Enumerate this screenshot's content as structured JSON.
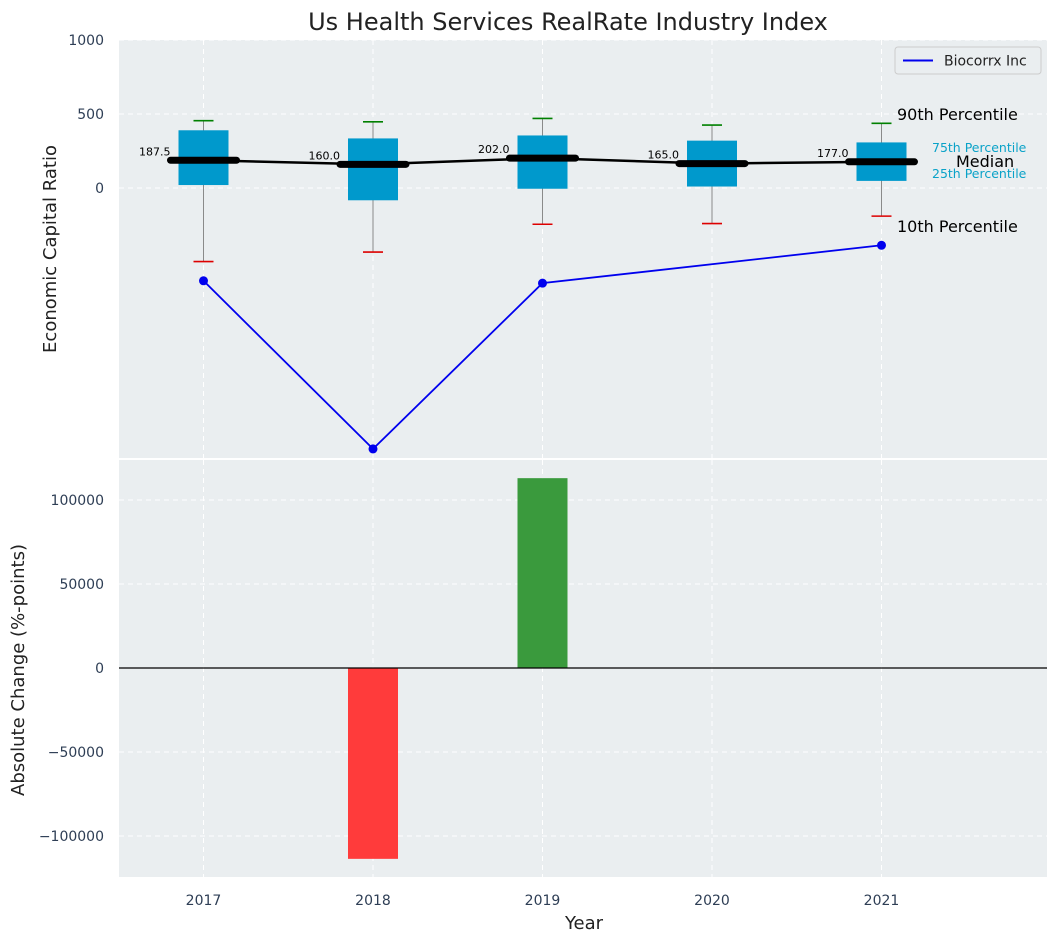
{
  "chart_data": [
    {
      "type": "box",
      "title": "Us Health Services RealRate Industry Index",
      "xlabel": "",
      "ylabel": "Economic Capital Ratio",
      "categories": [
        "2017",
        "2018",
        "2019",
        "2020",
        "2021"
      ],
      "y_ticks": [
        "1000",
        "500",
        "0"
      ],
      "y_tick_values": [
        1000,
        500,
        0
      ],
      "ylim": [
        -1800,
        1000
      ],
      "grid": true,
      "box_color": "#0099cc",
      "median_color": "#000000",
      "boxes": [
        {
          "category": "2017",
          "p10": -497,
          "p25": 20,
          "median": 187.5,
          "p75": 390,
          "p90": 455,
          "median_label": "187.5"
        },
        {
          "category": "2018",
          "p10": -433,
          "p25": -83,
          "median": 160.0,
          "p75": 335,
          "p90": 447,
          "median_label": "160.0"
        },
        {
          "category": "2019",
          "p10": -245,
          "p25": -5,
          "median": 202.0,
          "p75": 355,
          "p90": 470,
          "median_label": "202.0"
        },
        {
          "category": "2020",
          "p10": -240,
          "p25": 10,
          "median": 165.0,
          "p75": 320,
          "p90": 425,
          "median_label": "165.0"
        },
        {
          "category": "2021",
          "p10": -190,
          "p25": 48,
          "median": 177.0,
          "p75": 308,
          "p90": 437,
          "median_label": "177.0"
        }
      ],
      "series": [
        {
          "name": "Biocorrx Inc",
          "color": "#0000ee",
          "values": [
            -627,
            -1763,
            -643,
            null,
            -387
          ]
        }
      ],
      "legend": {
        "position": "top-right",
        "entries": [
          "Biocorrx Inc"
        ]
      },
      "annotations": {
        "p90": "90th Percentile",
        "p75": "75th Percentile",
        "median": "Median",
        "p25": "25th Percentile",
        "p10": "10th Percentile"
      }
    },
    {
      "type": "bar",
      "xlabel": "Year",
      "ylabel": "Absolute Change (%-points)",
      "categories": [
        "2017",
        "2018",
        "2019",
        "2020",
        "2021"
      ],
      "values": [
        0,
        -113600,
        113000,
        0,
        0
      ],
      "colors": {
        "positive": "#3a9a3d",
        "negative": "#ff3b3b"
      },
      "y_ticks": [
        "100000",
        "50000",
        "0",
        "−50000",
        "−100000"
      ],
      "y_tick_values": [
        100000,
        50000,
        0,
        -50000,
        -100000
      ],
      "ylim": [
        -125000,
        125000
      ],
      "grid": true
    }
  ],
  "colors": {
    "plot_background": "#eaeef0",
    "grid": "#ffffff",
    "tick_text": "#2e3e55",
    "whisker_high": "#008000",
    "whisker_low": "#dd0000",
    "whisker_stem": "#8a8a8a"
  }
}
